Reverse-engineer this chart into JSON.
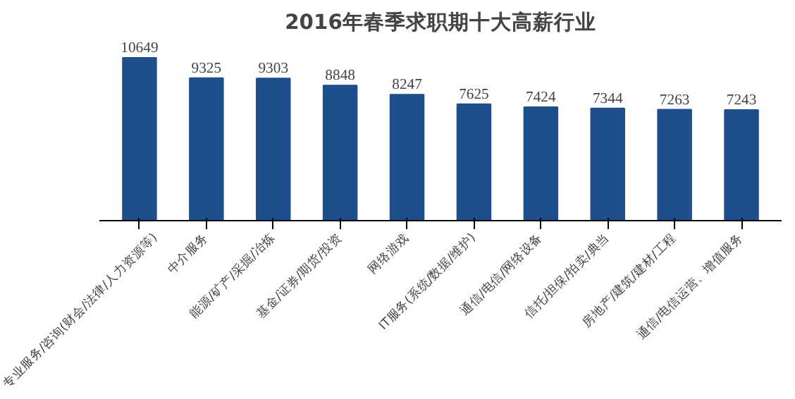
{
  "chart_data": {
    "type": "bar",
    "title": "2016年春季求职期十大高薪行业",
    "categories": [
      "专业服务/咨询(财会/法律/人力资源等)",
      "中介服务",
      "能源/矿产/采掘/冶炼",
      "基金/证券/期货/投资",
      "网络游戏",
      "IT服务(系统/数据/维护)",
      "通信/电信/网络设备",
      "信托/担保/拍卖/典当",
      "房地产/建筑/建材/工程",
      "通信/电信运营、增值服务"
    ],
    "values": [
      10649,
      9325,
      9303,
      8848,
      8247,
      7625,
      7424,
      7344,
      7263,
      7243
    ],
    "color": "#1f4e8c",
    "data_labels": true,
    "grid": false
  }
}
